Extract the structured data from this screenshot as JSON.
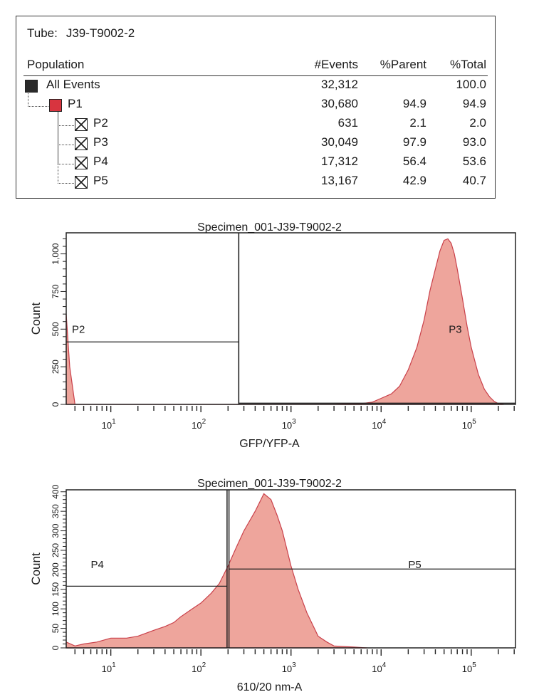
{
  "stats_table": {
    "tube_label": "Tube:",
    "tube_name": "J39-T9002-2",
    "columns": [
      "Population",
      "#Events",
      "%Parent",
      "%Total"
    ],
    "rows": [
      {
        "name": "All Events",
        "events": "32,312",
        "parent": "",
        "total": "100.0",
        "icon": "black-square",
        "color": "#2a2a2a"
      },
      {
        "name": "P1",
        "events": "30,680",
        "parent": "94.9",
        "total": "94.9",
        "icon": "red-square",
        "color": "#d8343f"
      },
      {
        "name": "P2",
        "events": "631",
        "parent": "2.1",
        "total": "2.0",
        "icon": "crossed-box"
      },
      {
        "name": "P3",
        "events": "30,049",
        "parent": "97.9",
        "total": "93.0",
        "icon": "crossed-box"
      },
      {
        "name": "P4",
        "events": "17,312",
        "parent": "56.4",
        "total": "53.6",
        "icon": "crossed-box"
      },
      {
        "name": "P5",
        "events": "13,167",
        "parent": "42.9",
        "total": "40.7",
        "icon": "crossed-box"
      }
    ]
  },
  "chart_data": [
    {
      "type": "area",
      "title": "Specimen_001-J39-T9002-2",
      "xlabel": "GFP/YFP-A",
      "ylabel": "Count",
      "xscale": "log",
      "xlim": [
        3.2,
        310000
      ],
      "ylim": [
        0,
        1140
      ],
      "xticks": [
        {
          "base": "10",
          "exp": "1",
          "value": 10
        },
        {
          "base": "10",
          "exp": "2",
          "value": 100
        },
        {
          "base": "10",
          "exp": "3",
          "value": 1000
        },
        {
          "base": "10",
          "exp": "4",
          "value": 10000
        },
        {
          "base": "10",
          "exp": "5",
          "value": 100000
        }
      ],
      "yticks": [
        {
          "label": "0",
          "value": 0
        },
        {
          "label": "250",
          "value": 250
        },
        {
          "label": "500",
          "value": 500
        },
        {
          "label": "750",
          "value": 750
        },
        {
          "label": "1,000",
          "value": 1000
        }
      ],
      "fill_color": "#eea59c",
      "line_color": "#c9404a",
      "x": [
        3.2,
        3.5,
        4,
        3000,
        6000,
        8000,
        10000,
        13000,
        16000,
        20000,
        25000,
        30000,
        35000,
        40000,
        45000,
        50000,
        55000,
        60000,
        65000,
        70000,
        80000,
        90000,
        100000,
        120000,
        140000,
        160000,
        180000,
        200000,
        230000
      ],
      "y": [
        600,
        250,
        0,
        0,
        5,
        15,
        40,
        70,
        120,
        230,
        380,
        560,
        760,
        900,
        1020,
        1090,
        1100,
        1070,
        1000,
        900,
        700,
        520,
        380,
        200,
        100,
        50,
        20,
        5,
        0
      ],
      "gates": [
        {
          "name": "P2",
          "x_range": [
            3.2,
            263
          ],
          "count_level": 415
        },
        {
          "name": "P3",
          "x_range": [
            263,
            310000
          ],
          "count_level": 8
        }
      ],
      "grid": false
    },
    {
      "type": "area",
      "title": "Specimen_001-J39-T9002-2",
      "xlabel": "610/20 nm-A",
      "ylabel": "Count",
      "xscale": "log",
      "xlim": [
        3.2,
        310000
      ],
      "ylim": [
        0,
        405
      ],
      "xticks": [
        {
          "base": "10",
          "exp": "1",
          "value": 10
        },
        {
          "base": "10",
          "exp": "2",
          "value": 100
        },
        {
          "base": "10",
          "exp": "3",
          "value": 1000
        },
        {
          "base": "10",
          "exp": "4",
          "value": 10000
        },
        {
          "base": "10",
          "exp": "5",
          "value": 100000
        }
      ],
      "yticks": [
        {
          "label": "0",
          "value": 0
        },
        {
          "label": "50",
          "value": 50
        },
        {
          "label": "100",
          "value": 100
        },
        {
          "label": "150",
          "value": 150
        },
        {
          "label": "200",
          "value": 200
        },
        {
          "label": "250",
          "value": 250
        },
        {
          "label": "300",
          "value": 300
        },
        {
          "label": "350",
          "value": 350
        },
        {
          "label": "400",
          "value": 400
        }
      ],
      "fill_color": "#eea59c",
      "line_color": "#c9404a",
      "x": [
        3.2,
        4,
        5,
        7,
        10,
        15,
        20,
        30,
        40,
        50,
        60,
        80,
        100,
        130,
        160,
        200,
        250,
        300,
        400,
        500,
        600,
        700,
        800,
        1000,
        1200,
        1500,
        2000,
        2500,
        3000,
        5000,
        7000
      ],
      "y": [
        15,
        5,
        10,
        15,
        25,
        25,
        30,
        45,
        55,
        65,
        80,
        100,
        115,
        140,
        165,
        210,
        260,
        300,
        350,
        395,
        380,
        340,
        300,
        210,
        150,
        90,
        30,
        15,
        5,
        2,
        0
      ],
      "gates": [
        {
          "name": "P4",
          "x_range": [
            3.2,
            195
          ],
          "count_level": 158
        },
        {
          "name": "P5",
          "x_range": [
            205,
            310000
          ],
          "count_level": 202
        }
      ],
      "grid": false
    }
  ]
}
